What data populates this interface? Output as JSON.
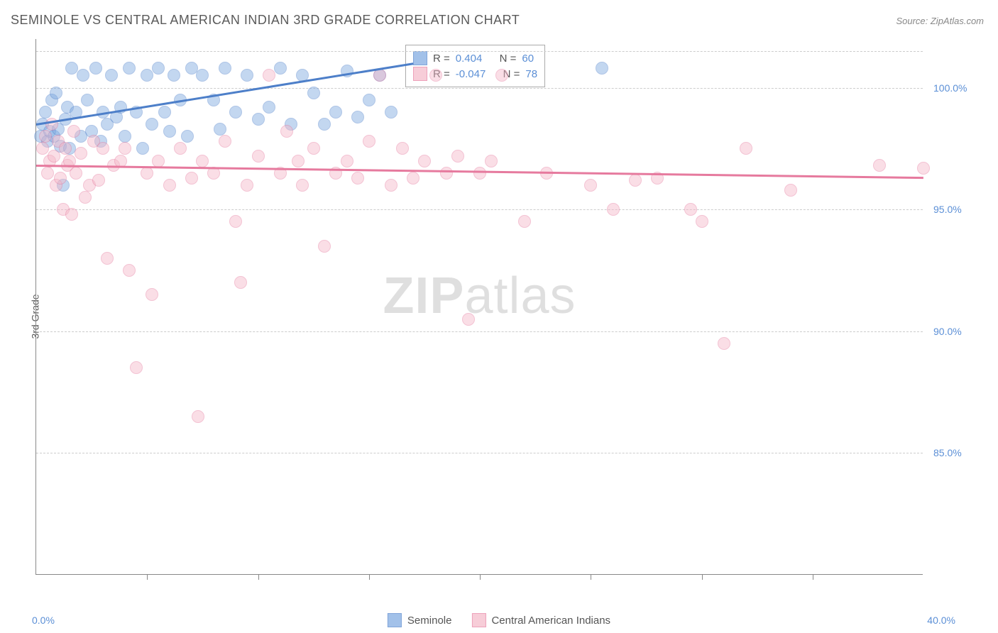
{
  "title": "SEMINOLE VS CENTRAL AMERICAN INDIAN 3RD GRADE CORRELATION CHART",
  "source": "Source: ZipAtlas.com",
  "ylabel": "3rd Grade",
  "watermark_zip": "ZIP",
  "watermark_atlas": "atlas",
  "chart": {
    "type": "scatter",
    "xlim": [
      0,
      40
    ],
    "ylim": [
      80,
      102
    ],
    "xtick_labels": [
      "0.0%",
      "40.0%"
    ],
    "xtick_positions": [
      0,
      40
    ],
    "xtick_minor": [
      5,
      10,
      15,
      20,
      25,
      30,
      35
    ],
    "ytick_labels": [
      "85.0%",
      "90.0%",
      "95.0%",
      "100.0%"
    ],
    "ytick_positions": [
      85,
      90,
      95,
      100
    ],
    "grid_color": "#cccccc",
    "background_color": "#ffffff",
    "axis_color": "#888888",
    "tick_label_color": "#5b8fd6",
    "label_fontsize": 14,
    "title_fontsize": 18,
    "title_color": "#5a5a5a",
    "marker_radius": 9,
    "marker_opacity": 0.45,
    "trend_line_width": 3
  },
  "series": [
    {
      "name": "Seminole",
      "fill_color": "#7ba7e0",
      "stroke_color": "#4d7fc9",
      "R": "0.404",
      "N": "60",
      "trend": {
        "x1": 0,
        "y1": 98.5,
        "x2": 17,
        "y2": 101.0
      },
      "points": [
        [
          0.2,
          98.0
        ],
        [
          0.3,
          98.5
        ],
        [
          0.4,
          99.0
        ],
        [
          0.5,
          97.8
        ],
        [
          0.6,
          98.2
        ],
        [
          0.7,
          99.5
        ],
        [
          0.8,
          98.0
        ],
        [
          0.9,
          99.8
        ],
        [
          1.0,
          98.3
        ],
        [
          1.1,
          97.6
        ],
        [
          1.2,
          96.0
        ],
        [
          1.3,
          98.7
        ],
        [
          1.4,
          99.2
        ],
        [
          1.5,
          97.5
        ],
        [
          1.6,
          100.8
        ],
        [
          1.8,
          99.0
        ],
        [
          2.0,
          98.0
        ],
        [
          2.1,
          100.5
        ],
        [
          2.3,
          99.5
        ],
        [
          2.5,
          98.2
        ],
        [
          2.7,
          100.8
        ],
        [
          2.9,
          97.8
        ],
        [
          3.0,
          99.0
        ],
        [
          3.2,
          98.5
        ],
        [
          3.4,
          100.5
        ],
        [
          3.6,
          98.8
        ],
        [
          3.8,
          99.2
        ],
        [
          4.0,
          98.0
        ],
        [
          4.2,
          100.8
        ],
        [
          4.5,
          99.0
        ],
        [
          4.8,
          97.5
        ],
        [
          5.0,
          100.5
        ],
        [
          5.2,
          98.5
        ],
        [
          5.5,
          100.8
        ],
        [
          5.8,
          99.0
        ],
        [
          6.0,
          98.2
        ],
        [
          6.2,
          100.5
        ],
        [
          6.5,
          99.5
        ],
        [
          6.8,
          98.0
        ],
        [
          7.0,
          100.8
        ],
        [
          7.5,
          100.5
        ],
        [
          8.0,
          99.5
        ],
        [
          8.3,
          98.3
        ],
        [
          8.5,
          100.8
        ],
        [
          9.0,
          99.0
        ],
        [
          9.5,
          100.5
        ],
        [
          10.0,
          98.7
        ],
        [
          10.5,
          99.2
        ],
        [
          11.0,
          100.8
        ],
        [
          11.5,
          98.5
        ],
        [
          12.0,
          100.5
        ],
        [
          12.5,
          99.8
        ],
        [
          13.0,
          98.5
        ],
        [
          13.5,
          99.0
        ],
        [
          14.0,
          100.7
        ],
        [
          14.5,
          98.8
        ],
        [
          15.0,
          99.5
        ],
        [
          15.5,
          100.5
        ],
        [
          16.0,
          99.0
        ],
        [
          25.5,
          100.8
        ]
      ]
    },
    {
      "name": "Central American Indians",
      "fill_color": "#f4b8c8",
      "stroke_color": "#e67a9e",
      "R": "-0.047",
      "N": "78",
      "trend": {
        "x1": 0,
        "y1": 96.8,
        "x2": 40,
        "y2": 96.3
      },
      "points": [
        [
          0.3,
          97.5
        ],
        [
          0.4,
          98.0
        ],
        [
          0.5,
          96.5
        ],
        [
          0.6,
          97.0
        ],
        [
          0.7,
          98.5
        ],
        [
          0.8,
          97.2
        ],
        [
          0.9,
          96.0
        ],
        [
          1.0,
          97.8
        ],
        [
          1.1,
          96.3
        ],
        [
          1.2,
          95.0
        ],
        [
          1.3,
          97.5
        ],
        [
          1.4,
          96.8
        ],
        [
          1.5,
          97.0
        ],
        [
          1.6,
          94.8
        ],
        [
          1.7,
          98.2
        ],
        [
          1.8,
          96.5
        ],
        [
          2.0,
          97.3
        ],
        [
          2.2,
          95.5
        ],
        [
          2.4,
          96.0
        ],
        [
          2.6,
          97.8
        ],
        [
          2.8,
          96.2
        ],
        [
          3.0,
          97.5
        ],
        [
          3.2,
          93.0
        ],
        [
          3.5,
          96.8
        ],
        [
          3.8,
          97.0
        ],
        [
          4.0,
          97.5
        ],
        [
          4.2,
          92.5
        ],
        [
          4.5,
          88.5
        ],
        [
          5.0,
          96.5
        ],
        [
          5.2,
          91.5
        ],
        [
          5.5,
          97.0
        ],
        [
          6.0,
          96.0
        ],
        [
          6.5,
          97.5
        ],
        [
          7.0,
          96.3
        ],
        [
          7.3,
          86.5
        ],
        [
          7.5,
          97.0
        ],
        [
          8.0,
          96.5
        ],
        [
          8.5,
          97.8
        ],
        [
          9.0,
          94.5
        ],
        [
          9.2,
          92.0
        ],
        [
          9.5,
          96.0
        ],
        [
          10.0,
          97.2
        ],
        [
          10.5,
          100.5
        ],
        [
          11.0,
          96.5
        ],
        [
          11.3,
          98.2
        ],
        [
          11.8,
          97.0
        ],
        [
          12.0,
          96.0
        ],
        [
          12.5,
          97.5
        ],
        [
          13.0,
          93.5
        ],
        [
          13.5,
          96.5
        ],
        [
          14.0,
          97.0
        ],
        [
          14.5,
          96.3
        ],
        [
          15.0,
          97.8
        ],
        [
          15.5,
          100.5
        ],
        [
          16.0,
          96.0
        ],
        [
          16.5,
          97.5
        ],
        [
          17.0,
          96.3
        ],
        [
          17.5,
          97.0
        ],
        [
          18.0,
          100.5
        ],
        [
          18.5,
          96.5
        ],
        [
          19.0,
          97.2
        ],
        [
          19.5,
          90.5
        ],
        [
          20.0,
          96.5
        ],
        [
          20.5,
          97.0
        ],
        [
          21.0,
          100.5
        ],
        [
          22.0,
          94.5
        ],
        [
          23.0,
          96.5
        ],
        [
          25.0,
          96.0
        ],
        [
          26.0,
          95.0
        ],
        [
          27.0,
          96.2
        ],
        [
          28.0,
          96.3
        ],
        [
          29.5,
          95.0
        ],
        [
          30.0,
          94.5
        ],
        [
          31.0,
          89.5
        ],
        [
          32.0,
          97.5
        ],
        [
          34.0,
          95.8
        ],
        [
          38.0,
          96.8
        ],
        [
          40.0,
          96.7
        ]
      ]
    }
  ],
  "legend": {
    "stats_labels": {
      "R": "R =",
      "N": "N ="
    },
    "bottom_items": [
      "Seminole",
      "Central American Indians"
    ]
  }
}
